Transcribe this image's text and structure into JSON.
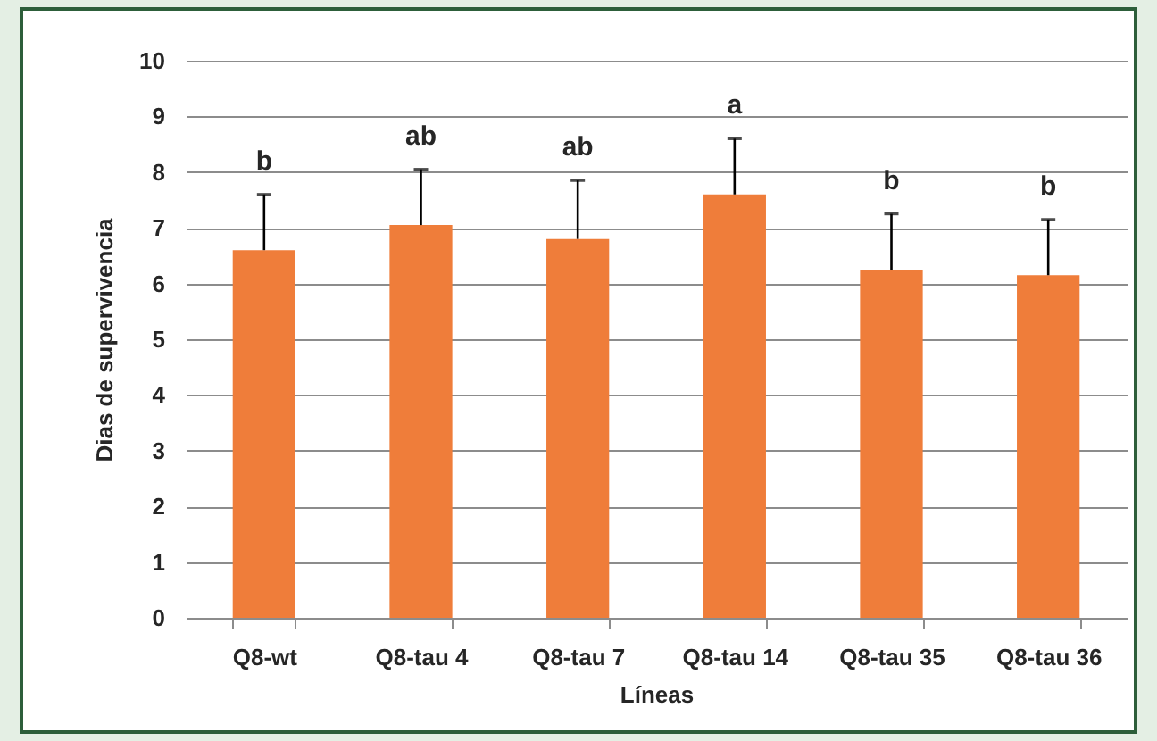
{
  "chart_data": {
    "type": "bar",
    "xlabel": "Líneas",
    "ylabel": "Dias de supervivencia",
    "categories": [
      "Q8-wt",
      "Q8-tau 4",
      "Q8-tau 7",
      "Q8-tau 14",
      "Q8-tau 35",
      "Q8-tau 36"
    ],
    "values": [
      6.6,
      7.05,
      6.8,
      7.6,
      6.25,
      6.15
    ],
    "color": "#ef7d3a",
    "errors": [
      [
        6.6,
        7.6
      ],
      [
        7.05,
        8.05
      ],
      [
        6.8,
        7.85
      ],
      [
        7.6,
        8.6
      ],
      [
        6.25,
        7.25
      ],
      [
        6.15,
        7.15
      ]
    ],
    "annotations": [
      {
        "text": "b",
        "x": "Q8-wt",
        "y": 7.6
      },
      {
        "text": "ab",
        "x": "Q8-tau 4",
        "y": 8.05
      },
      {
        "text": "ab",
        "x": "Q8-tau 7",
        "y": 7.85
      },
      {
        "text": "a",
        "x": "Q8-tau 14",
        "y": 8.6
      },
      {
        "text": "b",
        "x": "Q8-tau 35",
        "y": 7.25
      },
      {
        "text": "b",
        "x": "Q8-tau 36",
        "y": 7.15
      }
    ],
    "ylim": [
      0,
      10
    ],
    "yticks": [
      0,
      1,
      2,
      3,
      4,
      5,
      6,
      7,
      8,
      9,
      10
    ],
    "grid": "y"
  }
}
